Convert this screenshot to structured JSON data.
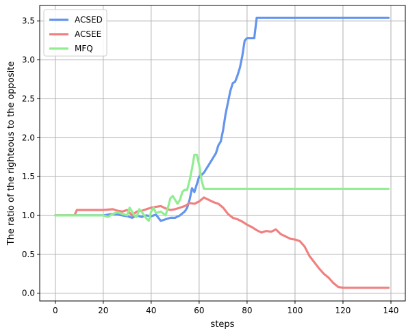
{
  "chart_data": {
    "type": "line",
    "xlabel": "steps",
    "ylabel": "The ratio of the righteous to the opposite",
    "xlim": [
      -6.5,
      146
    ],
    "ylim": [
      -0.1,
      3.7
    ],
    "xticks": [
      0,
      20,
      40,
      60,
      80,
      100,
      120,
      140
    ],
    "yticks": [
      0.0,
      0.5,
      1.0,
      1.5,
      2.0,
      2.5,
      3.0,
      3.5
    ],
    "xtick_labels": [
      "0",
      "20",
      "40",
      "60",
      "80",
      "100",
      "120",
      "140"
    ],
    "ytick_labels": [
      "0.0",
      "0.5",
      "1.0",
      "1.5",
      "2.0",
      "2.5",
      "3.0",
      "3.5"
    ],
    "grid": true,
    "legend_position": "top-left",
    "series": [
      {
        "name": "ACSED",
        "color": "#6495ED",
        "x": [
          0,
          20,
          24,
          26,
          28,
          30,
          32,
          34,
          36,
          38,
          40,
          42,
          44,
          46,
          48,
          50,
          52,
          54,
          55,
          56,
          57,
          58,
          59,
          60,
          61,
          62,
          63,
          64,
          65,
          66,
          67,
          68,
          69,
          70,
          71,
          72,
          73,
          74,
          75,
          76,
          77,
          78,
          79,
          80,
          81,
          82,
          83,
          84,
          139
        ],
        "y": [
          1.0,
          1.0,
          1.02,
          1.01,
          1.0,
          0.99,
          0.97,
          1.0,
          0.98,
          1.0,
          0.99,
          1.01,
          0.93,
          0.95,
          0.97,
          0.97,
          1.0,
          1.05,
          1.1,
          1.2,
          1.35,
          1.3,
          1.4,
          1.5,
          1.52,
          1.55,
          1.6,
          1.65,
          1.7,
          1.75,
          1.8,
          1.9,
          1.95,
          2.1,
          2.3,
          2.45,
          2.6,
          2.7,
          2.72,
          2.8,
          2.9,
          3.05,
          3.25,
          3.28,
          3.28,
          3.28,
          3.28,
          3.54,
          3.54
        ]
      },
      {
        "name": "ACSEE",
        "color": "#F08080",
        "x": [
          0,
          8,
          9,
          20,
          24,
          26,
          28,
          30,
          32,
          34,
          36,
          38,
          40,
          42,
          44,
          46,
          48,
          50,
          52,
          54,
          56,
          58,
          60,
          62,
          64,
          66,
          68,
          70,
          72,
          74,
          76,
          78,
          80,
          82,
          84,
          86,
          88,
          90,
          92,
          94,
          96,
          98,
          100,
          102,
          104,
          106,
          108,
          110,
          112,
          114,
          116,
          118,
          120,
          139
        ],
        "y": [
          1.0,
          1.0,
          1.07,
          1.07,
          1.08,
          1.06,
          1.05,
          1.07,
          1.0,
          1.05,
          1.06,
          1.08,
          1.1,
          1.11,
          1.12,
          1.09,
          1.07,
          1.08,
          1.1,
          1.12,
          1.16,
          1.15,
          1.18,
          1.23,
          1.2,
          1.17,
          1.15,
          1.1,
          1.02,
          0.97,
          0.95,
          0.92,
          0.88,
          0.85,
          0.81,
          0.78,
          0.8,
          0.79,
          0.82,
          0.76,
          0.73,
          0.7,
          0.69,
          0.67,
          0.6,
          0.48,
          0.4,
          0.32,
          0.25,
          0.2,
          0.13,
          0.08,
          0.07,
          0.07
        ]
      },
      {
        "name": "MFQ",
        "color": "#90EE90",
        "x": [
          0,
          20,
          22,
          24,
          26,
          28,
          30,
          31,
          33,
          34,
          35,
          36,
          38,
          39,
          40,
          41,
          42,
          44,
          46,
          47,
          48,
          49,
          50,
          51,
          52,
          53,
          54,
          55,
          56,
          57,
          58,
          59,
          60,
          61,
          62,
          139
        ],
        "y": [
          1.0,
          1.0,
          0.98,
          1.02,
          1.04,
          1.02,
          1.0,
          1.1,
          1.0,
          0.98,
          1.08,
          1.05,
          0.96,
          0.93,
          1.05,
          1.1,
          1.03,
          1.05,
          1.0,
          1.1,
          1.22,
          1.25,
          1.2,
          1.15,
          1.2,
          1.3,
          1.33,
          1.33,
          1.45,
          1.6,
          1.78,
          1.78,
          1.65,
          1.45,
          1.34,
          1.34
        ]
      }
    ]
  }
}
